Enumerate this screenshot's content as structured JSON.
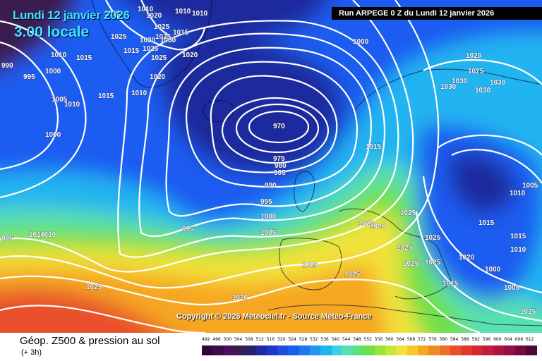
{
  "header": {
    "date_title": "Lundi 12 janvier 2026",
    "time_title": "3.00 locale",
    "run_info": "Run ARPEGE 0 Z du Lundi 12 janvier 2026"
  },
  "map": {
    "copyright": "Copyright © 2026 Meteociel.fr - Source Meteo-France",
    "colors": {
      "very_low": "#3a1b4f",
      "low": "#1f2a9e",
      "mid_low": "#1a5cf0",
      "mid": "#22b4f0",
      "mid_high": "#58e0b0",
      "green": "#6ee04a",
      "yellow": "#f2e23a",
      "orange": "#f5a623",
      "red": "#e8502c",
      "isobar": "#ffffff"
    },
    "pressure_labels": [
      {
        "v": "1010"
      },
      {
        "v": "1010"
      },
      {
        "v": "1010"
      },
      {
        "v": "1025"
      },
      {
        "v": "1015"
      },
      {
        "v": "1025"
      },
      {
        "v": "1025"
      },
      {
        "v": "1025"
      },
      {
        "v": "1030"
      },
      {
        "v": "1030"
      },
      {
        "v": "1015"
      },
      {
        "v": "1025"
      },
      {
        "v": "1020"
      },
      {
        "v": "1020"
      },
      {
        "v": "1020"
      },
      {
        "v": "1010"
      },
      {
        "v": "1015"
      },
      {
        "v": "990"
      },
      {
        "v": "995"
      },
      {
        "v": "1000"
      },
      {
        "v": "1005"
      },
      {
        "v": "1010"
      },
      {
        "v": "1015"
      },
      {
        "v": "1010"
      },
      {
        "v": "1015"
      },
      {
        "v": "1000"
      },
      {
        "v": "970"
      },
      {
        "v": "975"
      },
      {
        "v": "980"
      },
      {
        "v": "985"
      },
      {
        "v": "990"
      },
      {
        "v": "995"
      },
      {
        "v": "1000"
      },
      {
        "v": "995"
      },
      {
        "v": "1005"
      },
      {
        "v": "1000"
      },
      {
        "v": "1015"
      },
      {
        "v": "1025"
      },
      {
        "v": "1025"
      },
      {
        "v": "1025"
      },
      {
        "v": "1020"
      },
      {
        "v": "1020"
      },
      {
        "v": "1020"
      },
      {
        "v": "1025"
      },
      {
        "v": "1025"
      },
      {
        "v": "1025"
      },
      {
        "v": "1030"
      },
      {
        "v": "1030"
      },
      {
        "v": "1030"
      },
      {
        "v": "1030"
      },
      {
        "v": "1005"
      },
      {
        "v": "1010"
      },
      {
        "v": "1015"
      },
      {
        "v": "1015"
      },
      {
        "v": "1010"
      },
      {
        "v": "1020"
      },
      {
        "v": "1015"
      },
      {
        "v": "1005"
      },
      {
        "v": "1015"
      },
      {
        "v": "1000"
      },
      {
        "v": "1010"
      },
      {
        "v": "1010"
      },
      {
        "v": "995"
      },
      {
        "v": "1025"
      },
      {
        "v": "1020"
      },
      {
        "v": "1025"
      },
      {
        "v": "1025"
      }
    ]
  },
  "footer": {
    "product": "Géop. Z500 & pression au sol",
    "step": "(+ 3h)",
    "scale_labels": [
      "492",
      "496",
      "500",
      "504",
      "508",
      "512",
      "516",
      "520",
      "524",
      "528",
      "532",
      "536",
      "540",
      "544",
      "548",
      "552",
      "556",
      "560",
      "564",
      "568",
      "572",
      "576",
      "580",
      "584",
      "588",
      "592",
      "596",
      "600",
      "604",
      "608",
      "612"
    ],
    "scale_colors": [
      "#300838",
      "#3d0a4a",
      "#4a0f5e",
      "#3a1b4f",
      "#2b2070",
      "#1f2a9e",
      "#1d38c8",
      "#1a4de0",
      "#1a5cf0",
      "#1f78f0",
      "#2296f0",
      "#22b4f0",
      "#3cd0e8",
      "#58e0b0",
      "#5ce07a",
      "#6ee04a",
      "#9ae23c",
      "#c8e63a",
      "#f2e23a",
      "#f4c82e",
      "#f5a623",
      "#f08a28",
      "#ec6e2a",
      "#e8502c",
      "#e03a30",
      "#d22a34",
      "#c01e3a",
      "#a81640",
      "#901044",
      "#700c40",
      "#500838"
    ]
  }
}
